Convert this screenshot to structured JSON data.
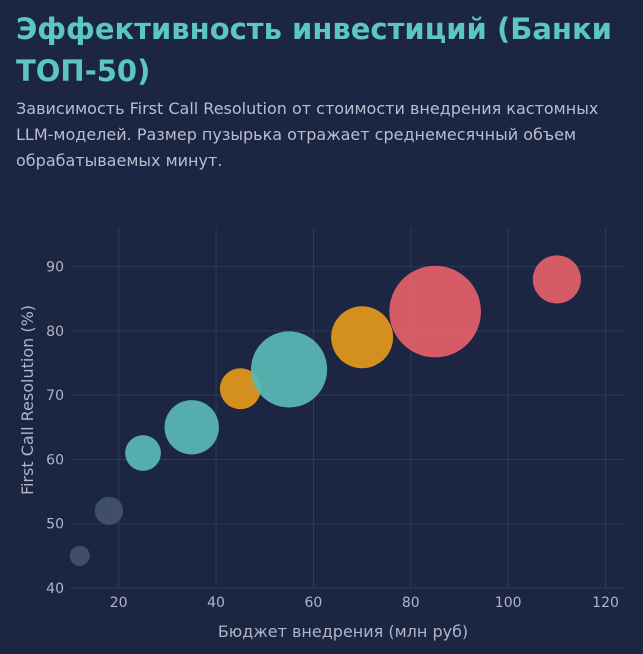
{
  "header": {
    "title": "Эффективность инвестиций (Банки ТОП-50)",
    "subtitle": "Зависимость First Call Resolution от стоимости внедрения кастомных LLM-моделей. Размер пузырька отражает среднемесячный объем обрабатываемых минут."
  },
  "colors": {
    "background": "#1c2541",
    "title": "#5cc6c0",
    "teal": "#5ab8b6",
    "orange": "#e4991b",
    "red": "#e5616a",
    "slate": "#42536e"
  },
  "chart_data": {
    "type": "scatter",
    "variant": "bubble",
    "xlabel": "Бюджет внедрения (млн руб)",
    "ylabel": "First Call Resolution (%)",
    "xlim": [
      10,
      124
    ],
    "ylim": [
      40,
      96
    ],
    "x_ticks": [
      20,
      40,
      60,
      80,
      100,
      120
    ],
    "y_ticks": [
      40,
      50,
      60,
      70,
      80,
      90
    ],
    "grid": true,
    "legend": "none",
    "points": [
      {
        "x": 12,
        "y": 45,
        "size": 1.0,
        "color": "slate"
      },
      {
        "x": 18,
        "y": 52,
        "size": 2.0,
        "color": "slate"
      },
      {
        "x": 25,
        "y": 61,
        "size": 3.2,
        "color": "teal"
      },
      {
        "x": 35,
        "y": 65,
        "size": 7.4,
        "color": "teal"
      },
      {
        "x": 45,
        "y": 71,
        "size": 4.2,
        "color": "orange"
      },
      {
        "x": 55,
        "y": 74,
        "size": 14.5,
        "color": "teal"
      },
      {
        "x": 70,
        "y": 79,
        "size": 9.6,
        "color": "orange"
      },
      {
        "x": 85,
        "y": 83,
        "size": 21.0,
        "color": "red"
      },
      {
        "x": 110,
        "y": 88,
        "size": 5.8,
        "color": "red"
      }
    ]
  }
}
